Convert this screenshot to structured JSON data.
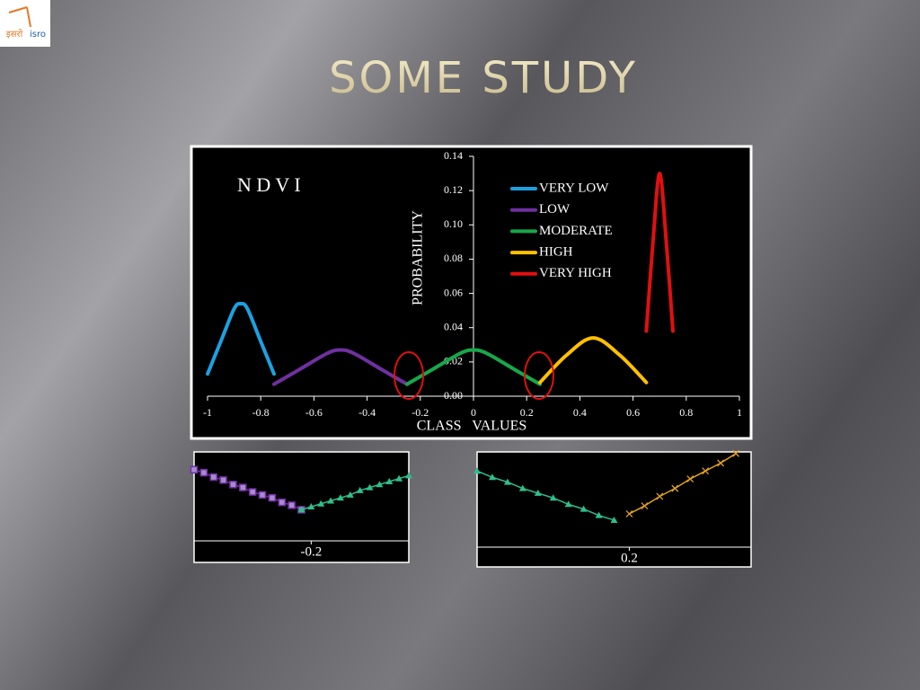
{
  "header": {
    "title": "SOME STUDY"
  },
  "logo": {
    "labels": [
      "इसरो",
      "isro"
    ]
  },
  "chart_data": [
    {
      "type": "line",
      "annotation": "N D V I",
      "x_label": "CLASS   VALUES",
      "y_label": "PROBABILITY",
      "xlim": [
        -1,
        1
      ],
      "xticks": [
        -1,
        -0.8,
        -0.6,
        -0.4,
        -0.2,
        0,
        0.2,
        0.4,
        0.6,
        0.8,
        1
      ],
      "ylim": [
        0,
        0.14
      ],
      "yticks": [
        {
          "value": 0,
          "label": "0.00"
        },
        0.02,
        0.04,
        0.06,
        0.08,
        {
          "value": 0.1,
          "label": "0.10"
        },
        0.12,
        0.14
      ],
      "series": [
        {
          "name": "VERY LOW",
          "color": "#1ba1e2",
          "x": [
            -1,
            -0.95,
            -0.9,
            -0.875,
            -0.85,
            -0.8,
            -0.75
          ],
          "values": [
            0.013,
            0.032,
            0.051,
            0.054,
            0.051,
            0.032,
            0.013
          ]
        },
        {
          "name": "LOW",
          "color": "#7030a0",
          "x": [
            -0.75,
            -0.65,
            -0.55,
            -0.5,
            -0.45,
            -0.35,
            -0.25
          ],
          "values": [
            0.007,
            0.016,
            0.025,
            0.027,
            0.025,
            0.016,
            0.007
          ]
        },
        {
          "name": "MODERATE",
          "color": "#17a84a",
          "x": [
            -0.25,
            -0.15,
            -0.05,
            0,
            0.05,
            0.15,
            0.25
          ],
          "values": [
            0.007,
            0.016,
            0.025,
            0.027,
            0.025,
            0.016,
            0.007
          ]
        },
        {
          "name": "HIGH",
          "color": "#ffc000",
          "x": [
            0.25,
            0.35,
            0.45,
            0.55,
            0.65
          ],
          "values": [
            0.008,
            0.024,
            0.034,
            0.024,
            0.008
          ]
        },
        {
          "name": "VERY HIGH",
          "color": "#e01010",
          "x": [
            0.65,
            0.675,
            0.7,
            0.725,
            0.75
          ],
          "values": [
            0.038,
            0.09,
            0.13,
            0.09,
            0.038
          ]
        }
      ]
    },
    {
      "type": "scatter",
      "xlim": [
        -0.32,
        -0.1
      ],
      "xticks": [
        -0.2
      ],
      "ylim": [
        0.005,
        0.011
      ],
      "series": [
        {
          "color": "#7030a0",
          "marker": "square",
          "x": [
            -0.32,
            -0.31,
            -0.3,
            -0.29,
            -0.28,
            -0.27,
            -0.26,
            -0.25,
            -0.24,
            -0.23,
            -0.22,
            -0.21
          ],
          "values": [
            0.0098,
            0.0096,
            0.0093,
            0.0091,
            0.0088,
            0.0086,
            0.0083,
            0.0081,
            0.0079,
            0.0076,
            0.0074,
            0.0071
          ]
        },
        {
          "color": "#2fbf8a",
          "marker": "triangle",
          "x": [
            -0.21,
            -0.2,
            -0.19,
            -0.18,
            -0.17,
            -0.16,
            -0.15,
            -0.14,
            -0.13,
            -0.12,
            -0.11,
            -0.1
          ],
          "values": [
            0.0071,
            0.0073,
            0.0075,
            0.0077,
            0.0079,
            0.0081,
            0.0084,
            0.0086,
            0.0088,
            0.009,
            0.0092,
            0.0094
          ]
        }
      ]
    },
    {
      "type": "scatter",
      "xlim": [
        0.1,
        0.28
      ],
      "xticks": [
        0.2
      ],
      "ylim": [
        0.005,
        0.011
      ],
      "series": [
        {
          "color": "#2fbf8a",
          "marker": "triangle",
          "x": [
            0.1,
            0.11,
            0.12,
            0.13,
            0.14,
            0.15,
            0.16,
            0.17,
            0.18,
            0.19
          ],
          "values": [
            0.0098,
            0.0094,
            0.0091,
            0.0087,
            0.0084,
            0.0081,
            0.0077,
            0.0074,
            0.007,
            0.0067
          ]
        },
        {
          "color": "#e0a020",
          "marker": "cross",
          "x": [
            0.2,
            0.21,
            0.22,
            0.23,
            0.24,
            0.25,
            0.26,
            0.27
          ],
          "values": [
            0.0071,
            0.0076,
            0.0082,
            0.0087,
            0.0093,
            0.0098,
            0.0103,
            0.0109
          ]
        }
      ]
    }
  ]
}
